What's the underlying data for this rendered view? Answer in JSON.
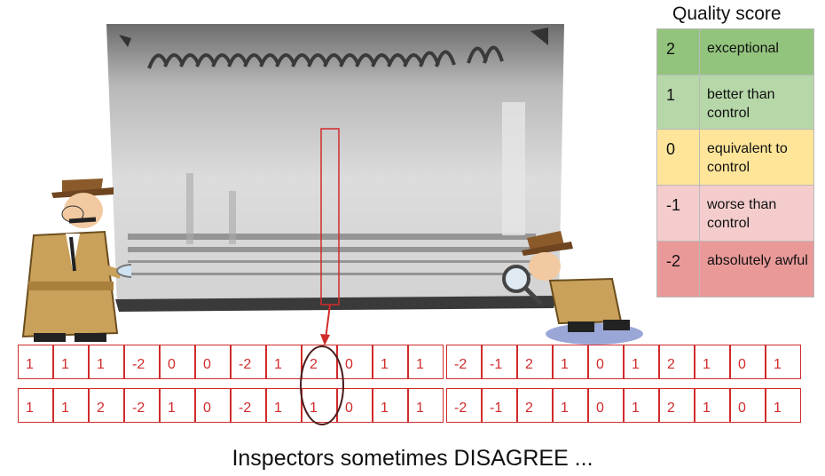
{
  "legend": {
    "title": "Quality score",
    "rows": [
      {
        "score": "2",
        "desc": "exceptional",
        "color": "#93c47d"
      },
      {
        "score": "1",
        "desc": "better than control",
        "color": "#b6d7a8"
      },
      {
        "score": "0",
        "desc": "equivalent to control",
        "color": "#ffe599"
      },
      {
        "score": "-1",
        "desc": "worse than control",
        "color": "#f4cccc"
      },
      {
        "score": "-2",
        "desc": "absolutely awful",
        "color": "#ea9999"
      }
    ]
  },
  "scores_inspector_1": [
    "1",
    "1",
    "1",
    "-2",
    "0",
    "0",
    "-2",
    "1",
    "2",
    "0",
    "1",
    "1",
    "-2",
    "-1",
    "2",
    "1",
    "0",
    "1",
    "2",
    "1",
    "0",
    "1"
  ],
  "scores_inspector_2": [
    "1",
    "1",
    "2",
    "-2",
    "1",
    "0",
    "-2",
    "1",
    "1",
    "0",
    "1",
    "1",
    "-2",
    "-1",
    "2",
    "1",
    "0",
    "1",
    "2",
    "1",
    "0",
    "1"
  ],
  "caption": "Inspectors sometimes DISAGREE ...",
  "colors": {
    "accent": "#d12b2b"
  }
}
